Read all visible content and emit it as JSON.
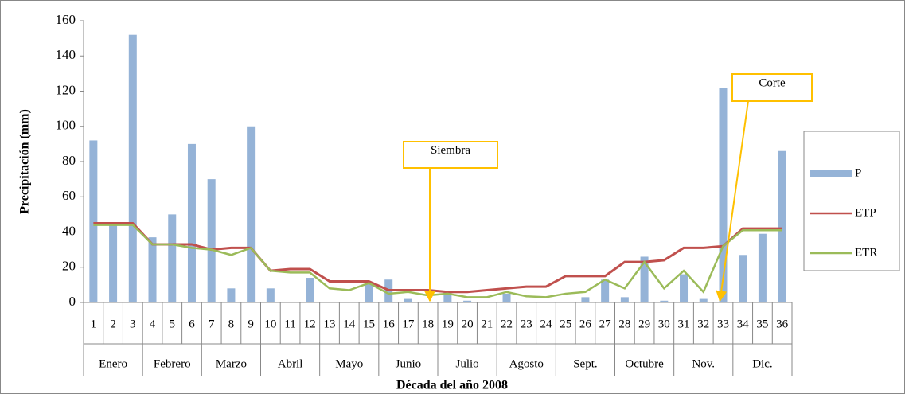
{
  "chart_data": {
    "type": "bar-line",
    "x_label": "Década del año 2008",
    "y_label": "Precipitación (mm)",
    "categories": [
      "1",
      "2",
      "3",
      "4",
      "5",
      "6",
      "7",
      "8",
      "9",
      "10",
      "11",
      "12",
      "13",
      "14",
      "15",
      "16",
      "17",
      "18",
      "19",
      "20",
      "21",
      "22",
      "23",
      "24",
      "25",
      "26",
      "27",
      "28",
      "29",
      "30",
      "31",
      "32",
      "33",
      "34",
      "35",
      "36"
    ],
    "groups": [
      "Enero",
      "Febrero",
      "Marzo",
      "Abril",
      "Mayo",
      "Junio",
      "Julio",
      "Agosto",
      "Sept.",
      "Octubre",
      "Nov.",
      "Dic."
    ],
    "series": [
      {
        "name": "P",
        "type": "bar",
        "color": "#95b3d7",
        "values": [
          92,
          45,
          152,
          37,
          50,
          90,
          70,
          8,
          100,
          8,
          0,
          14,
          0,
          0,
          11,
          13,
          2,
          0,
          6,
          1,
          0,
          5,
          0,
          0,
          0,
          3,
          13,
          3,
          26,
          1,
          16,
          2,
          122,
          27,
          39,
          86
        ]
      },
      {
        "name": "ETP",
        "type": "line",
        "color": "#c0504d",
        "values": [
          45,
          45,
          45,
          33,
          33,
          33,
          30,
          31,
          31,
          18,
          19,
          19,
          12,
          12,
          12,
          7,
          7,
          7,
          6,
          6,
          7,
          8,
          9,
          9,
          15,
          15,
          15,
          23,
          23,
          24,
          31,
          31,
          32,
          42,
          42,
          42
        ]
      },
      {
        "name": "ETR",
        "type": "line",
        "color": "#9bbb59",
        "values": [
          44,
          44,
          44,
          33,
          33,
          31,
          30,
          27,
          31,
          18,
          17,
          17,
          8,
          7,
          11,
          5,
          6,
          4,
          5,
          3,
          3,
          6,
          3.5,
          3,
          5,
          6,
          13,
          8,
          23,
          8,
          18,
          6,
          32,
          41,
          41,
          41
        ]
      }
    ],
    "annotations": [
      {
        "text": "Siembra",
        "category": "18"
      },
      {
        "text": "Corte",
        "category": "33"
      }
    ],
    "ylim": [
      0,
      160
    ],
    "yticks": [
      0,
      20,
      40,
      60,
      80,
      100,
      120,
      140,
      160
    ],
    "legend": "right"
  }
}
